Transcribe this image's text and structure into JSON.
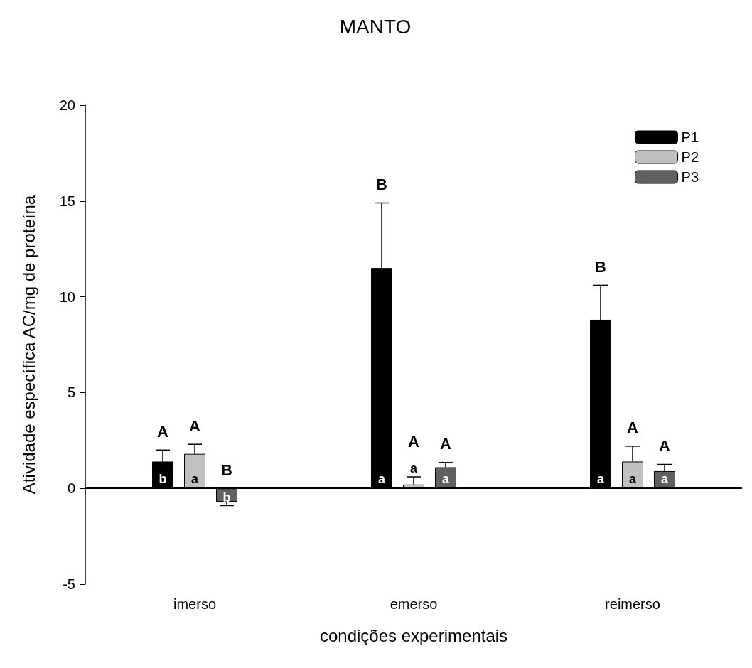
{
  "chart_data": {
    "type": "bar",
    "title": "MANTO",
    "xlabel": "condições experimentais",
    "ylabel": "Atividade específica AC/mg de proteína",
    "categories": [
      "imerso",
      "emerso",
      "reimerso"
    ],
    "series": [
      {
        "name": "P1",
        "color": "#000000",
        "values": [
          1.4,
          11.5,
          8.8
        ],
        "errors": [
          [
            1.4,
            2.0
          ],
          [
            11.5,
            14.9
          ],
          [
            8.8,
            10.6
          ]
        ],
        "value_labels": [
          "b",
          "a",
          "a"
        ]
      },
      {
        "name": "P2",
        "color": "#c0c0c0",
        "values": [
          1.8,
          0.2,
          1.4
        ],
        "errors": [
          [
            1.8,
            2.3
          ],
          [
            0.2,
            0.6
          ],
          [
            1.4,
            2.2
          ]
        ],
        "value_labels": [
          "a",
          "a",
          "a"
        ]
      },
      {
        "name": "P3",
        "color": "#606060",
        "values": [
          -0.7,
          1.1,
          0.9
        ],
        "errors": [
          [
            -0.9,
            -0.7
          ],
          [
            1.1,
            1.35
          ],
          [
            0.9,
            1.25
          ]
        ],
        "value_labels": [
          "b",
          "a",
          "a"
        ]
      }
    ],
    "annotations": [
      "A",
      "A",
      "B",
      "B",
      "A",
      "A",
      "B",
      "A",
      "A"
    ],
    "ylim": [
      -5,
      20
    ],
    "yticks": [
      -5,
      0,
      5,
      10,
      15,
      20
    ],
    "ref_lines": [
      {
        "axis": "y",
        "value": 0,
        "color": "#000000",
        "line_style": "solid"
      }
    ],
    "grid": false,
    "legend": "top right"
  }
}
